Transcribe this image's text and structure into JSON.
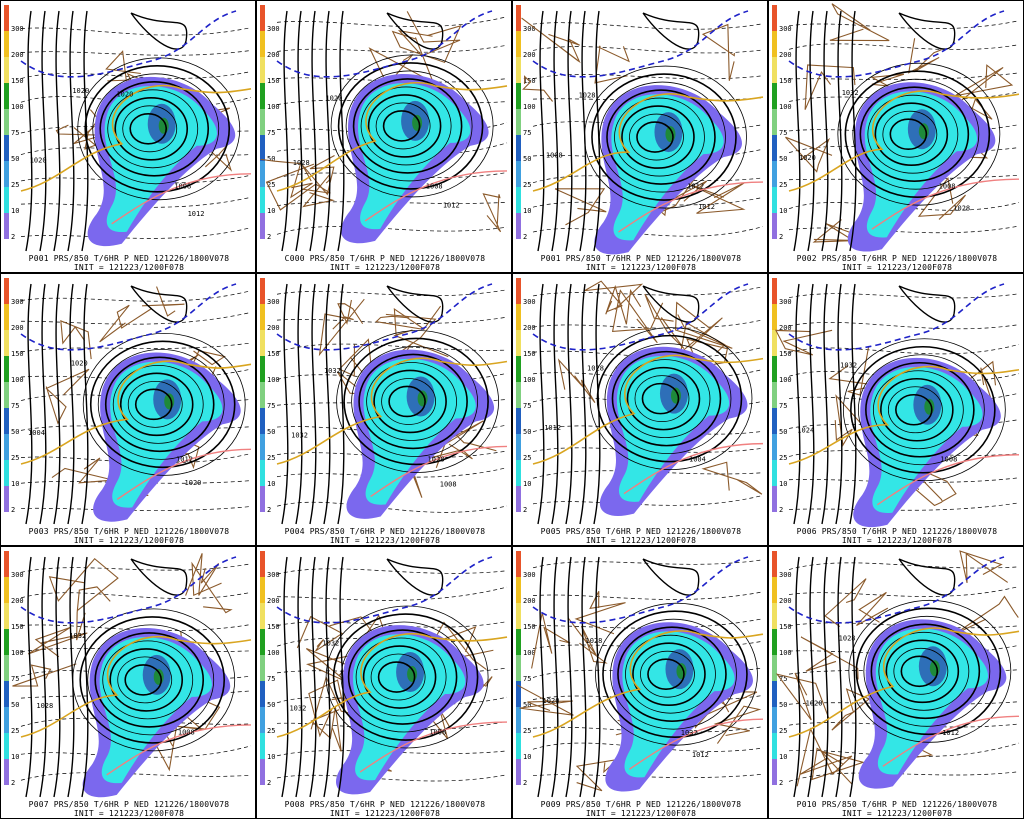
{
  "colorbar": {
    "ticks": [
      "300",
      "200",
      "150",
      "100",
      "75",
      "50",
      "25",
      "10",
      "2"
    ],
    "colors": [
      "#e8542a",
      "#f0c020",
      "#f0e060",
      "#20a020",
      "#80d080",
      "#2060c0",
      "#40a0e0",
      "#30e0e0",
      "#9070e0"
    ]
  },
  "colors": {
    "precip_light": "#7b68ee",
    "precip_mid": "#33e6e6",
    "precip_heavy": "#2e6fb8",
    "precip_max": "#1e8a3a",
    "isobar": "#000000",
    "isotherm_dashed": "#000000",
    "zero_line": "#1e22c8",
    "border": "#8b5a2b",
    "trough": "#d9a520",
    "warm": "#f08080"
  },
  "panels": [
    {
      "caption": "P001 PRS/850 T/6HR P NED 121226/1800V078",
      "init": "INIT = 121223/1200F078",
      "labels": [
        "1020",
        "1020",
        "1008",
        "1012",
        "1020"
      ]
    },
    {
      "caption": "C000 PRS/850 T/6HR P NED 121226/1800V078",
      "init": "INIT = 121223/1200F078",
      "labels": [
        "1020",
        "1028",
        "1008",
        "1012"
      ]
    },
    {
      "caption": "P001 PRS/850 T/6HR P NED 121226/1800V078",
      "init": "INIT = 121223/1200F078",
      "labels": [
        "1028",
        "1008",
        "1012",
        "1012"
      ]
    },
    {
      "caption": "P002 PRS/850 T/6HR P NED 121226/1800V078",
      "init": "INIT = 121223/1200F078",
      "labels": [
        "1032",
        "1020",
        "1008",
        "1028"
      ]
    },
    {
      "caption": "P003 PRS/850 T/6HR P NED 121226/1800V078",
      "init": "INIT = 121223/1200F078",
      "labels": [
        "1020",
        "1004",
        "1012",
        "1020"
      ]
    },
    {
      "caption": "P004 PRS/850 T/6HR P NED 121226/1800V078",
      "init": "INIT = 121223/1200F078",
      "labels": [
        "1032",
        "1032",
        "1028",
        "1008"
      ]
    },
    {
      "caption": "P005 PRS/850 T/6HR P NED 121226/1800V078",
      "init": "INIT = 121223/1200F078",
      "labels": [
        "1028",
        "1012",
        "1004"
      ]
    },
    {
      "caption": "P006 PRS/850 T/6HR P NED 121226/1800V078",
      "init": "INIT = 121223/1200F078",
      "labels": [
        "1032",
        "1024",
        "1008"
      ]
    },
    {
      "caption": "P007 PRS/850 T/6HR P NED 121226/1800V078",
      "init": "INIT = 121223/1200F078",
      "labels": [
        "1032",
        "1028",
        "1008"
      ]
    },
    {
      "caption": "P008 PRS/850 T/6HR P NED 121226/1800V078",
      "init": "INIT = 121223/1200F078",
      "labels": [
        "1032",
        "1032",
        "1008"
      ]
    },
    {
      "caption": "P009 PRS/850 T/6HR P NED 121226/1800V078",
      "init": "INIT = 121223/1200F078",
      "labels": [
        "1028",
        "1020",
        "1032",
        "1012"
      ]
    },
    {
      "caption": "P010 PRS/850 T/6HR P NED 121226/1800V078",
      "init": "INIT = 121223/1200F078",
      "labels": [
        "1028",
        "1020",
        "1012"
      ]
    }
  ]
}
